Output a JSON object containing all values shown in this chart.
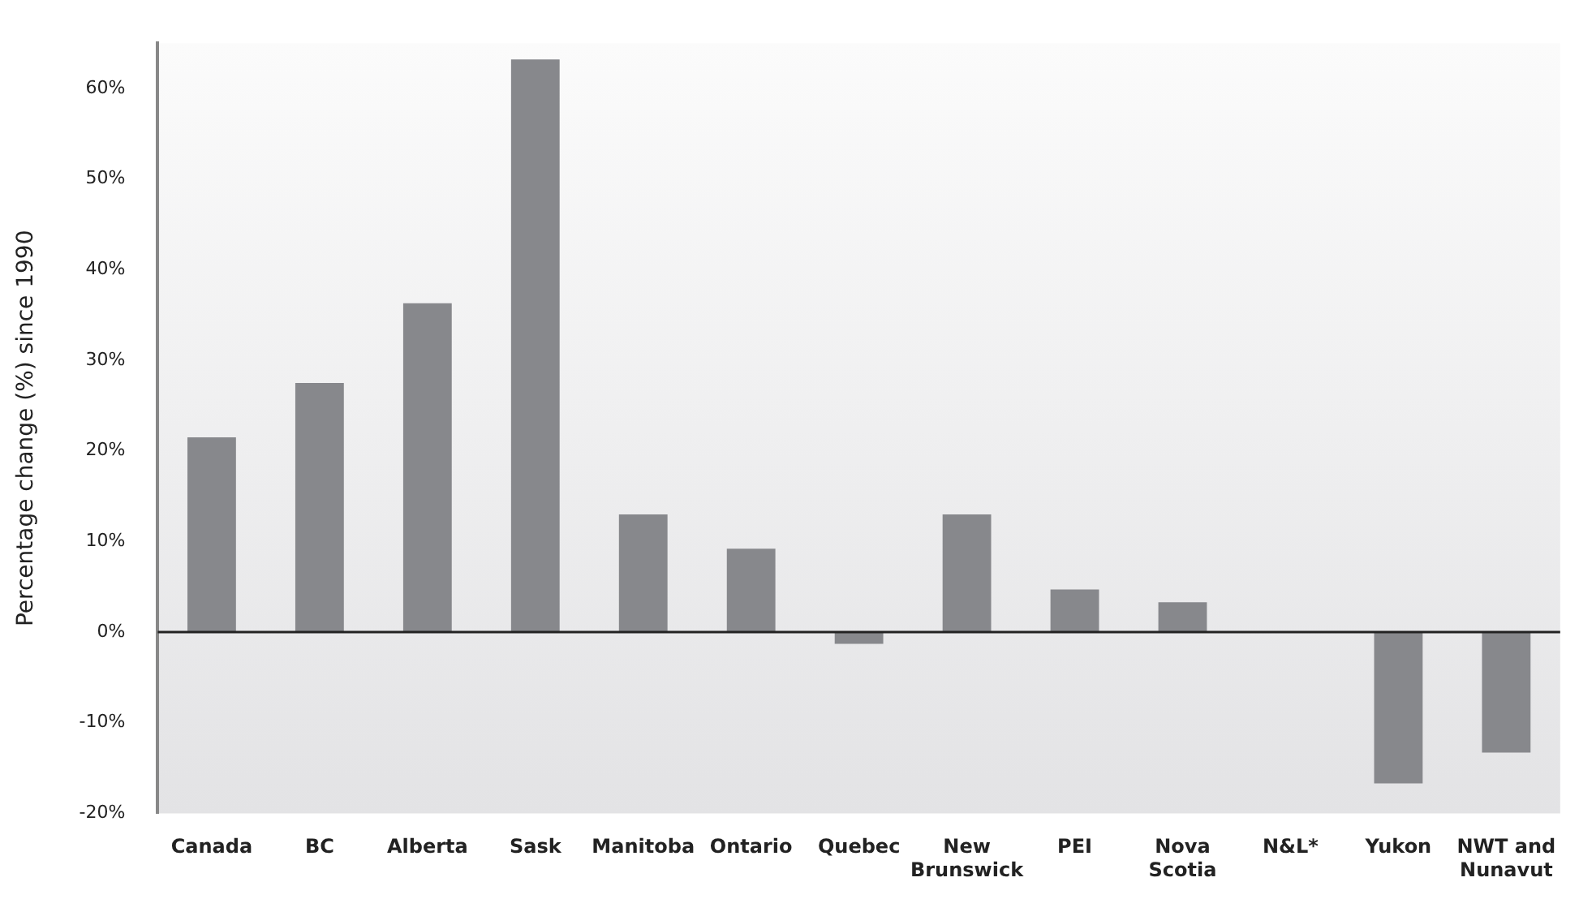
{
  "chart_data": {
    "type": "bar",
    "ylabel": "Percentage change (%) since 1990",
    "categories": [
      "Canada",
      "BC",
      "Alberta",
      "Sask",
      "Manitoba",
      "Ontario",
      "Quebec",
      "New Brunswick",
      "PEI",
      "Nova Scotia",
      "N&L*",
      "Yukon",
      "NWT and Nunavut"
    ],
    "values": [
      21.5,
      27.5,
      36.3,
      63.2,
      13.0,
      9.2,
      -1.3,
      13.0,
      4.7,
      3.3,
      null,
      -16.7,
      -13.3
    ],
    "color": "#87888c",
    "ylim": [
      -20,
      65
    ],
    "yticks": [
      {
        "value": -20,
        "label": "-20%"
      },
      {
        "value": -10,
        "label": "-10%"
      },
      {
        "value": 0,
        "label": "0%"
      },
      {
        "value": 10,
        "label": "10%"
      },
      {
        "value": 20,
        "label": "20%"
      },
      {
        "value": 30,
        "label": "30%"
      },
      {
        "value": 40,
        "label": "40%"
      },
      {
        "value": 50,
        "label": "50%"
      },
      {
        "value": 60,
        "label": "60%"
      }
    ],
    "ref_lines": [
      {
        "axis": "y",
        "value": 0,
        "color": "#222222"
      }
    ],
    "grid": false,
    "legend": false
  }
}
